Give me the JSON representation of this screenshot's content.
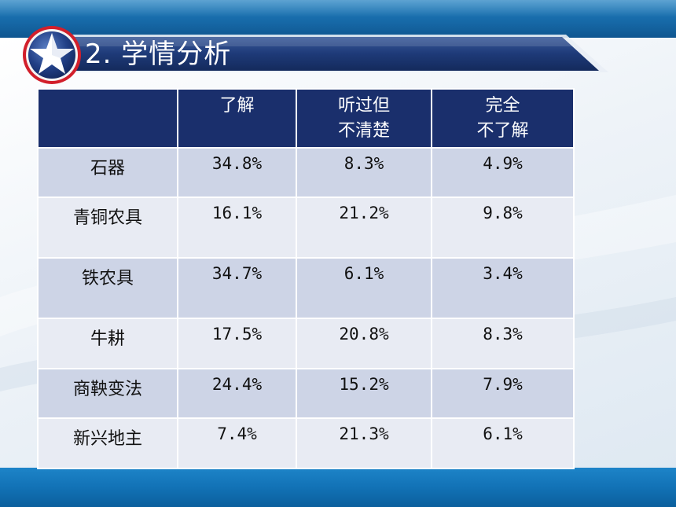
{
  "title": "2. 学情分析",
  "colors": {
    "header_bg": "#1a2f6c",
    "row_dark": "#cdd4e6",
    "row_light": "#e8ebf3",
    "banner": "#1e3a78",
    "badge_ring": "#d21f2b"
  },
  "icons": {
    "badge": "star-icon"
  },
  "table": {
    "headers": [
      {
        "lines": [
          ""
        ]
      },
      {
        "lines": [
          "了解"
        ]
      },
      {
        "lines": [
          "听过但",
          "不清楚"
        ]
      },
      {
        "lines": [
          "完全",
          "不了解"
        ]
      }
    ],
    "rows": [
      {
        "label": "石器",
        "v1": "34.8%",
        "v2": "8.3%",
        "v3": "4.9%"
      },
      {
        "label": "青铜农具",
        "v1": "16.1%",
        "v2": "21.2%",
        "v3": "9.8%"
      },
      {
        "label": "铁农具",
        "v1": "34.7%",
        "v2": "6.1%",
        "v3": "3.4%"
      },
      {
        "label": "牛耕",
        "v1": "17.5%",
        "v2": "20.8%",
        "v3": "8.3%"
      },
      {
        "label": "商鞅变法",
        "v1": "24.4%",
        "v2": "15.2%",
        "v3": "7.9%"
      },
      {
        "label": "新兴地主",
        "v1": "7.4%",
        "v2": "21.3%",
        "v3": "6.1%"
      }
    ]
  }
}
